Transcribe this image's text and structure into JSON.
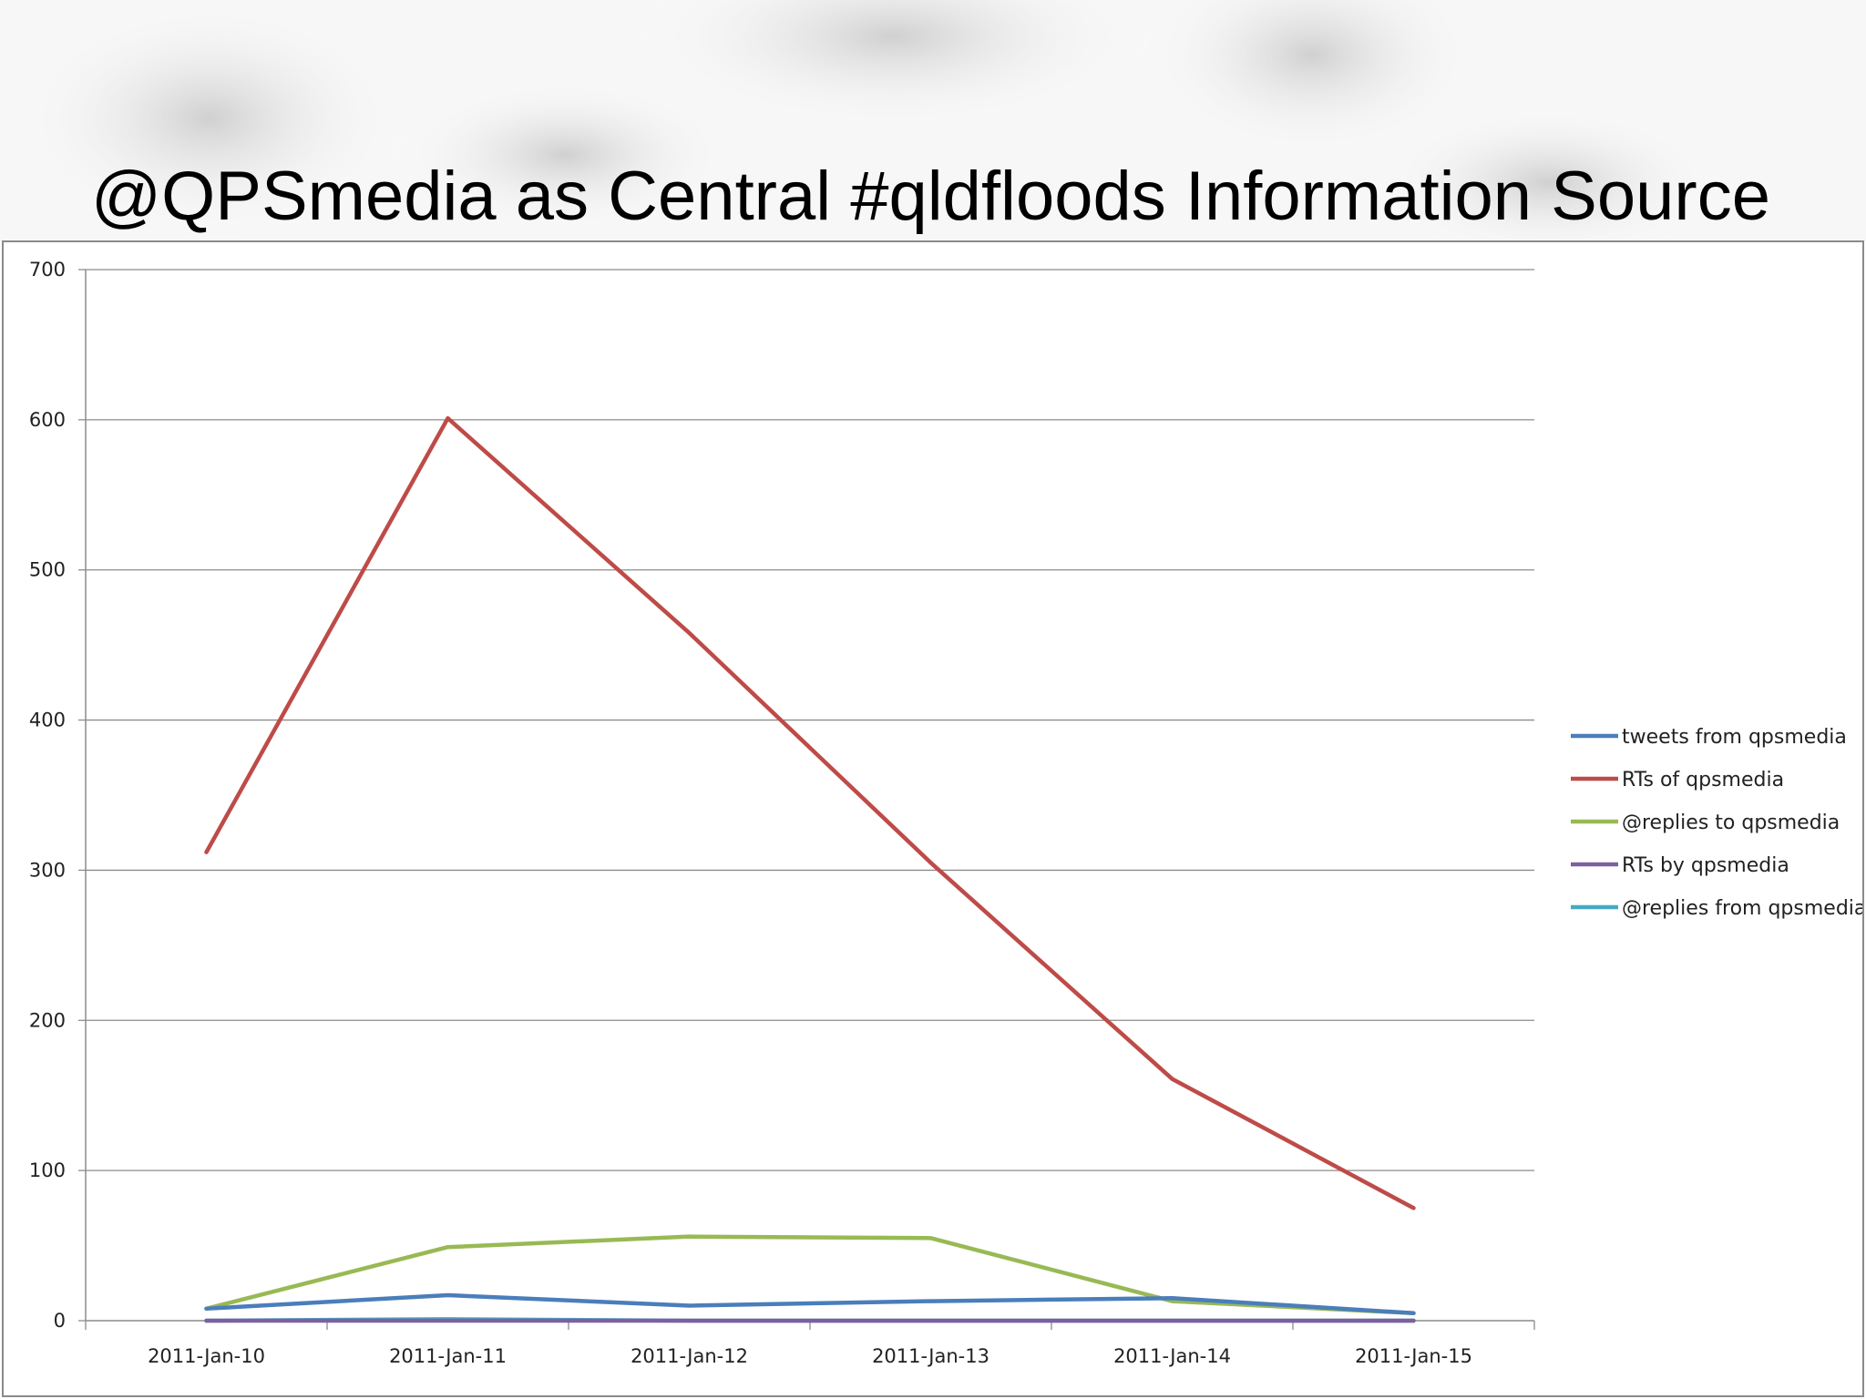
{
  "slide": {
    "title": "@QPSmedia as Central #qldfloods Information Source"
  },
  "chart_data": {
    "type": "line",
    "title": "",
    "xlabel": "",
    "ylabel": "",
    "categories": [
      "2011-Jan-10",
      "2011-Jan-11",
      "2011-Jan-12",
      "2011-Jan-13",
      "2011-Jan-14",
      "2011-Jan-15"
    ],
    "ylim": [
      0,
      700
    ],
    "yticks": [
      0,
      100,
      200,
      300,
      400,
      500,
      600,
      700
    ],
    "grid": true,
    "legend_position": "right",
    "series": [
      {
        "name": "tweets from qpsmedia",
        "color": "#4a7ebb",
        "values": [
          8,
          17,
          10,
          13,
          15,
          5
        ]
      },
      {
        "name": "RTs of qpsmedia",
        "color": "#be4b48",
        "values": [
          312,
          601,
          458,
          305,
          161,
          75
        ]
      },
      {
        "name": "@replies to qpsmedia",
        "color": "#98b954",
        "values": [
          8,
          49,
          56,
          55,
          13,
          5
        ]
      },
      {
        "name": "RTs by qpsmedia",
        "color": "#7d60a0",
        "values": [
          0,
          0,
          0,
          0,
          0,
          0
        ]
      },
      {
        "name": "@replies from qpsmedia",
        "color": "#46aac5",
        "values": [
          0,
          1,
          0,
          0,
          0,
          0
        ]
      }
    ]
  }
}
